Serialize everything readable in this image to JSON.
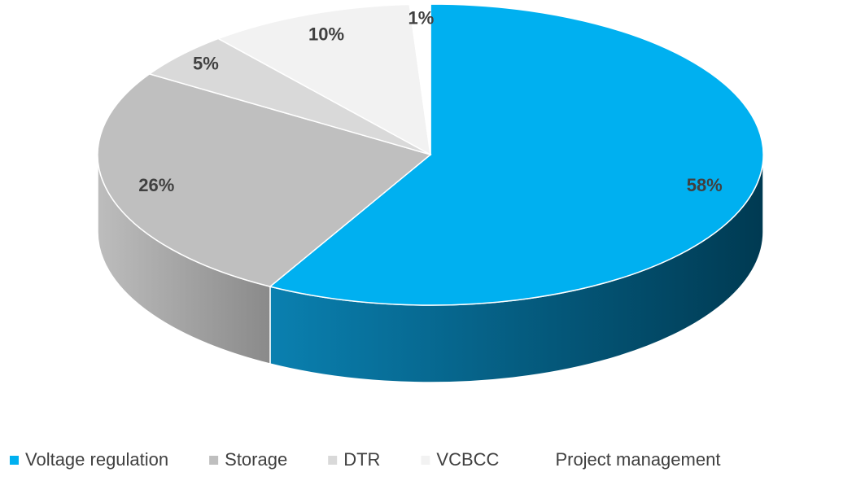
{
  "chart_data": {
    "type": "pie",
    "categories": [
      "Voltage regulation",
      "Storage",
      "DTR",
      "VCBCC",
      "Project management"
    ],
    "values": [
      58,
      26,
      5,
      10,
      1
    ],
    "value_labels": [
      "58%",
      "26%",
      "5%",
      "10%",
      "1%"
    ],
    "colors": [
      "#00b0f0",
      "#bfbfbf",
      "#d9d9d9",
      "#f2f2f2",
      "#ffffff"
    ],
    "legend": "bottom"
  }
}
